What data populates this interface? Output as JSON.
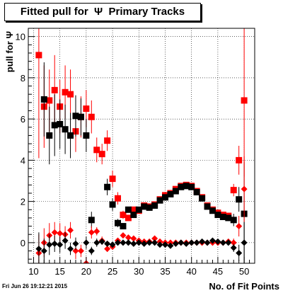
{
  "title": "Fitted pull for  Ψ  Primary Tracks",
  "timestamp": "Fri Jun 26 19:12:21 2015",
  "chart_data": {
    "type": "scatter",
    "xlabel": "No. of Fit Points",
    "ylabel": "pull for  Ψ",
    "xlim": [
      9,
      52
    ],
    "ylim": [
      -1,
      10.4
    ],
    "xticks": [
      10,
      15,
      20,
      25,
      30,
      35,
      40,
      45,
      50
    ],
    "yticks": [
      0,
      2,
      4,
      6,
      8,
      10
    ],
    "grid": true,
    "series": [
      {
        "color": "#ff0000",
        "marker": "square",
        "points": [
          {
            "x": 11,
            "y": 9.1,
            "err": 5.0
          },
          {
            "x": 12,
            "y": 6.6,
            "err": 2.0
          },
          {
            "x": 13,
            "y": 6.9,
            "err": 1.5
          },
          {
            "x": 14,
            "y": 7.4,
            "err": 1.7
          },
          {
            "x": 15,
            "y": 6.6,
            "err": 1.3
          },
          {
            "x": 16,
            "y": 7.3,
            "err": 1.3
          },
          {
            "x": 17,
            "y": 7.2,
            "err": 1.2
          },
          {
            "x": 18,
            "y": 5.4,
            "err": 1.0
          },
          {
            "x": 19,
            "y": 6.1,
            "err": 1.0
          },
          {
            "x": 20,
            "y": 6.5,
            "err": 0.9
          },
          {
            "x": 21,
            "y": 6.1,
            "err": 0.8
          },
          {
            "x": 22,
            "y": 4.5,
            "err": 0.6
          },
          {
            "x": 23,
            "y": 4.3,
            "err": 0.5
          },
          {
            "x": 24,
            "y": 4.95,
            "err": 0.5
          },
          {
            "x": 25,
            "y": 3.1,
            "err": 0.4
          },
          {
            "x": 26,
            "y": 2.15,
            "err": 0.3
          },
          {
            "x": 27,
            "y": 1.35,
            "err": 0.2
          },
          {
            "x": 28,
            "y": 1.2,
            "err": 0.15
          },
          {
            "x": 29,
            "y": 1.6,
            "err": 0.1
          },
          {
            "x": 30,
            "y": 1.55,
            "err": 0.1
          },
          {
            "x": 31,
            "y": 1.8,
            "err": 0.1
          },
          {
            "x": 32,
            "y": 1.75,
            "err": 0.1
          },
          {
            "x": 33,
            "y": 1.85,
            "err": 0.1
          },
          {
            "x": 34,
            "y": 2.1,
            "err": 0.1
          },
          {
            "x": 35,
            "y": 2.3,
            "err": 0.1
          },
          {
            "x": 36,
            "y": 2.4,
            "err": 0.1
          },
          {
            "x": 37,
            "y": 2.6,
            "err": 0.1
          },
          {
            "x": 38,
            "y": 2.75,
            "err": 0.1
          },
          {
            "x": 39,
            "y": 2.8,
            "err": 0.1
          },
          {
            "x": 40,
            "y": 2.75,
            "err": 0.1
          },
          {
            "x": 41,
            "y": 2.5,
            "err": 0.1
          },
          {
            "x": 42,
            "y": 2.2,
            "err": 0.1
          },
          {
            "x": 43,
            "y": 1.8,
            "err": 0.1
          },
          {
            "x": 44,
            "y": 1.6,
            "err": 0.1
          },
          {
            "x": 45,
            "y": 1.45,
            "err": 0.1
          },
          {
            "x": 46,
            "y": 1.35,
            "err": 0.1
          },
          {
            "x": 47,
            "y": 1.3,
            "err": 0.15
          },
          {
            "x": 48,
            "y": 2.55,
            "err": 0.3
          },
          {
            "x": 49,
            "y": 4.0,
            "err": 0.7
          },
          {
            "x": 50,
            "y": 6.9,
            "err": 3.7
          }
        ]
      },
      {
        "color": "#000000",
        "marker": "square",
        "points": [
          {
            "x": 12,
            "y": 6.95,
            "err": 1.8
          },
          {
            "x": 13,
            "y": 5.2,
            "err": 1.4
          },
          {
            "x": 14,
            "y": 5.7,
            "err": 1.5
          },
          {
            "x": 15,
            "y": 5.75,
            "err": 1.2
          },
          {
            "x": 16,
            "y": 5.5,
            "err": 1.2
          },
          {
            "x": 17,
            "y": 5.2,
            "err": 1.1
          },
          {
            "x": 18,
            "y": 6.15,
            "err": 1.0
          },
          {
            "x": 19,
            "y": 6.1,
            "err": 0.9
          },
          {
            "x": 20,
            "y": 5.2,
            "err": 0.8
          },
          {
            "x": 21,
            "y": 1.1,
            "err": 0.4
          },
          {
            "x": 24,
            "y": 2.7,
            "err": 0.4
          },
          {
            "x": 25,
            "y": 1.85,
            "err": 0.3
          },
          {
            "x": 26,
            "y": 0.95,
            "err": 0.2
          },
          {
            "x": 27,
            "y": 0.8,
            "err": 0.15
          },
          {
            "x": 28,
            "y": 1.6,
            "err": 0.1
          },
          {
            "x": 29,
            "y": 1.35,
            "err": 0.1
          },
          {
            "x": 30,
            "y": 1.6,
            "err": 0.1
          },
          {
            "x": 31,
            "y": 1.75,
            "err": 0.1
          },
          {
            "x": 32,
            "y": 1.7,
            "err": 0.1
          },
          {
            "x": 33,
            "y": 1.8,
            "err": 0.1
          },
          {
            "x": 34,
            "y": 2.05,
            "err": 0.1
          },
          {
            "x": 35,
            "y": 2.2,
            "err": 0.1
          },
          {
            "x": 36,
            "y": 2.35,
            "err": 0.1
          },
          {
            "x": 37,
            "y": 2.5,
            "err": 0.1
          },
          {
            "x": 38,
            "y": 2.7,
            "err": 0.1
          },
          {
            "x": 39,
            "y": 2.75,
            "err": 0.1
          },
          {
            "x": 40,
            "y": 2.7,
            "err": 0.1
          },
          {
            "x": 41,
            "y": 2.45,
            "err": 0.1
          },
          {
            "x": 42,
            "y": 2.15,
            "err": 0.1
          },
          {
            "x": 43,
            "y": 1.75,
            "err": 0.1
          },
          {
            "x": 44,
            "y": 1.55,
            "err": 0.1
          },
          {
            "x": 45,
            "y": 1.35,
            "err": 0.1
          },
          {
            "x": 46,
            "y": 1.25,
            "err": 0.1
          },
          {
            "x": 47,
            "y": 1.2,
            "err": 0.15
          },
          {
            "x": 48,
            "y": 1.1,
            "err": 0.3
          },
          {
            "x": 49,
            "y": 2.1,
            "err": 0.6
          },
          {
            "x": 50,
            "y": 1.4,
            "err": 2.5
          }
        ]
      },
      {
        "color": "#ff0000",
        "marker": "diamond",
        "points": [
          {
            "x": 11,
            "y": -0.5,
            "err": 0.9
          },
          {
            "x": 12,
            "y": 0.0,
            "err": 0.7
          },
          {
            "x": 13,
            "y": 0.35,
            "err": 0.6
          },
          {
            "x": 14,
            "y": 0.5,
            "err": 0.5
          },
          {
            "x": 15,
            "y": 0.45,
            "err": 0.5
          },
          {
            "x": 16,
            "y": 0.4,
            "err": 0.4
          },
          {
            "x": 17,
            "y": 0.6,
            "err": 0.4
          },
          {
            "x": 18,
            "y": -0.4,
            "err": 0.4
          },
          {
            "x": 19,
            "y": -0.4,
            "err": 0.3
          },
          {
            "x": 20,
            "y": -1.0,
            "err": 0.3
          },
          {
            "x": 21,
            "y": 0.5,
            "err": 0.3
          },
          {
            "x": 22,
            "y": 0.55,
            "err": 0.2
          },
          {
            "x": 23,
            "y": 0.1,
            "err": 0.2
          },
          {
            "x": 24,
            "y": -0.3,
            "err": 0.15
          },
          {
            "x": 25,
            "y": -0.2,
            "err": 0.15
          },
          {
            "x": 26,
            "y": 0.1,
            "err": 0.1
          },
          {
            "x": 27,
            "y": 0.35,
            "err": 0.1
          },
          {
            "x": 28,
            "y": 0.25,
            "err": 0.05
          },
          {
            "x": 29,
            "y": 0.2,
            "err": 0.05
          },
          {
            "x": 30,
            "y": 0.1,
            "err": 0.05
          },
          {
            "x": 31,
            "y": 0.05,
            "err": 0.05
          },
          {
            "x": 32,
            "y": 0.05,
            "err": 0.05
          },
          {
            "x": 33,
            "y": 0.2,
            "err": 0.05
          },
          {
            "x": 34,
            "y": 0.05,
            "err": 0.05
          },
          {
            "x": 35,
            "y": 0.0,
            "err": 0.05
          },
          {
            "x": 36,
            "y": 0.0,
            "err": 0.05
          },
          {
            "x": 37,
            "y": 0.0,
            "err": 0.05
          },
          {
            "x": 38,
            "y": 0.0,
            "err": 0.05
          },
          {
            "x": 39,
            "y": 0.0,
            "err": 0.05
          },
          {
            "x": 40,
            "y": 0.0,
            "err": 0.05
          },
          {
            "x": 41,
            "y": 0.0,
            "err": 0.05
          },
          {
            "x": 42,
            "y": 0.0,
            "err": 0.05
          },
          {
            "x": 43,
            "y": 0.0,
            "err": 0.05
          },
          {
            "x": 44,
            "y": 0.0,
            "err": 0.05
          },
          {
            "x": 45,
            "y": 0.0,
            "err": 0.05
          },
          {
            "x": 46,
            "y": 0.0,
            "err": 0.05
          },
          {
            "x": 47,
            "y": 0.05,
            "err": 0.1
          },
          {
            "x": 48,
            "y": 0.0,
            "err": 0.2
          },
          {
            "x": 49,
            "y": 0.8,
            "err": 0.5
          },
          {
            "x": 50,
            "y": 2.6,
            "err": 1.6
          }
        ]
      },
      {
        "color": "#000000",
        "marker": "diamond",
        "points": [
          {
            "x": 11,
            "y": -0.3,
            "err": 0.8
          },
          {
            "x": 12,
            "y": -0.4,
            "err": 0.6
          },
          {
            "x": 13,
            "y": -0.1,
            "err": 0.5
          },
          {
            "x": 14,
            "y": -0.05,
            "err": 0.4
          },
          {
            "x": 15,
            "y": -0.1,
            "err": 0.4
          },
          {
            "x": 16,
            "y": 0.1,
            "err": 0.4
          },
          {
            "x": 17,
            "y": -0.3,
            "err": 0.3
          },
          {
            "x": 18,
            "y": -0.05,
            "err": 0.3
          },
          {
            "x": 20,
            "y": 0.0,
            "err": 0.3
          },
          {
            "x": 21,
            "y": -0.4,
            "err": 0.2
          },
          {
            "x": 22,
            "y": 0.0,
            "err": 0.2
          },
          {
            "x": 23,
            "y": 0.05,
            "err": 0.15
          },
          {
            "x": 24,
            "y": -0.05,
            "err": 0.1
          },
          {
            "x": 25,
            "y": -0.1,
            "err": 0.1
          },
          {
            "x": 26,
            "y": 0.0,
            "err": 0.1
          },
          {
            "x": 27,
            "y": 0.0,
            "err": 0.05
          },
          {
            "x": 28,
            "y": 0.0,
            "err": 0.05
          },
          {
            "x": 29,
            "y": -0.05,
            "err": 0.05
          },
          {
            "x": 30,
            "y": 0.0,
            "err": 0.05
          },
          {
            "x": 31,
            "y": -0.05,
            "err": 0.05
          },
          {
            "x": 32,
            "y": 0.0,
            "err": 0.05
          },
          {
            "x": 33,
            "y": 0.0,
            "err": 0.05
          },
          {
            "x": 34,
            "y": -0.1,
            "err": 0.05
          },
          {
            "x": 35,
            "y": -0.1,
            "err": 0.05
          },
          {
            "x": 36,
            "y": -0.15,
            "err": 0.05
          },
          {
            "x": 37,
            "y": -0.05,
            "err": 0.05
          },
          {
            "x": 38,
            "y": 0.0,
            "err": 0.05
          },
          {
            "x": 39,
            "y": -0.05,
            "err": 0.05
          },
          {
            "x": 40,
            "y": 0.0,
            "err": 0.05
          },
          {
            "x": 41,
            "y": 0.0,
            "err": 0.05
          },
          {
            "x": 42,
            "y": 0.05,
            "err": 0.05
          },
          {
            "x": 43,
            "y": 0.0,
            "err": 0.05
          },
          {
            "x": 44,
            "y": 0.1,
            "err": 0.05
          },
          {
            "x": 45,
            "y": 0.05,
            "err": 0.05
          },
          {
            "x": 46,
            "y": 0.0,
            "err": 0.05
          },
          {
            "x": 47,
            "y": 0.0,
            "err": 0.1
          },
          {
            "x": 48,
            "y": -0.25,
            "err": 0.2
          },
          {
            "x": 49,
            "y": -0.5,
            "err": 0.4
          },
          {
            "x": 50,
            "y": 0.0,
            "err": 1.0
          }
        ]
      }
    ]
  }
}
